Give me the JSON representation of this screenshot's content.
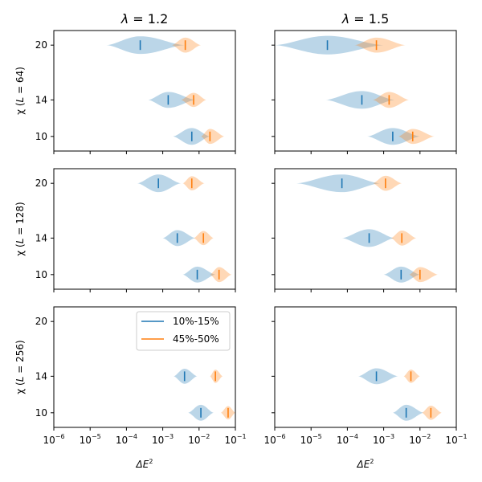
{
  "chart_data": {
    "type": "violin",
    "xscale": "log",
    "xlim_exp": [
      -6,
      -1
    ],
    "xticks": [
      {
        "exp": -6,
        "base": "10",
        "sup": "−6"
      },
      {
        "exp": -5,
        "base": "10",
        "sup": "−5"
      },
      {
        "exp": -4,
        "base": "10",
        "sup": "−4"
      },
      {
        "exp": -3,
        "base": "10",
        "sup": "−3"
      },
      {
        "exp": -2,
        "base": "10",
        "sup": "−2"
      },
      {
        "exp": -1,
        "base": "10",
        "sup": "−1"
      }
    ],
    "ylim": [
      8.4,
      21.6
    ],
    "yticks": [
      10,
      14,
      20
    ],
    "xlabel": {
      "base": "ΔE",
      "sup": "2"
    },
    "column_titles": [
      {
        "lambda_symbol": "λ",
        "rest": " = 1.2"
      },
      {
        "lambda_symbol": "λ",
        "rest": " = 1.5"
      }
    ],
    "row_labels": [
      {
        "prefix": "χ (",
        "L": "L",
        "rest": " = 64)"
      },
      {
        "prefix": "χ (",
        "L": "L",
        "rest": " = 128)"
      },
      {
        "prefix": "χ (",
        "L": "L",
        "rest": " = 256)"
      }
    ],
    "legend": [
      {
        "label": "10%-15%",
        "color": "#1f77b4"
      },
      {
        "label": "45%-50%",
        "color": "#ff7f0e"
      }
    ],
    "series_colors": [
      "#1f77b4",
      "#ff7f0e"
    ],
    "panels": [
      {
        "row": 0,
        "col": 0,
        "violins": [
          {
            "chi": 20,
            "series": 0,
            "median_exp": -3.62,
            "min_exp": -4.55,
            "max_exp": -2.4,
            "width": 1.0
          },
          {
            "chi": 20,
            "series": 1,
            "median_exp": -2.38,
            "min_exp": -2.75,
            "max_exp": -1.95,
            "width": 0.85
          },
          {
            "chi": 14,
            "series": 0,
            "median_exp": -2.85,
            "min_exp": -3.4,
            "max_exp": -2.1,
            "width": 0.9
          },
          {
            "chi": 14,
            "series": 1,
            "median_exp": -2.15,
            "min_exp": -2.5,
            "max_exp": -1.8,
            "width": 0.8
          },
          {
            "chi": 10,
            "series": 0,
            "median_exp": -2.2,
            "min_exp": -2.72,
            "max_exp": -1.7,
            "width": 0.95
          },
          {
            "chi": 10,
            "series": 1,
            "median_exp": -1.7,
            "min_exp": -1.95,
            "max_exp": -1.3,
            "width": 0.85
          }
        ]
      },
      {
        "row": 0,
        "col": 1,
        "violins": [
          {
            "chi": 20,
            "series": 0,
            "median_exp": -4.55,
            "min_exp": -6.0,
            "max_exp": -3.0,
            "width": 1.05
          },
          {
            "chi": 20,
            "series": 1,
            "median_exp": -3.2,
            "min_exp": -3.8,
            "max_exp": -2.4,
            "width": 0.85
          },
          {
            "chi": 14,
            "series": 0,
            "median_exp": -3.6,
            "min_exp": -4.6,
            "max_exp": -2.7,
            "width": 1.0
          },
          {
            "chi": 14,
            "series": 1,
            "median_exp": -2.85,
            "min_exp": -3.3,
            "max_exp": -2.3,
            "width": 0.9
          },
          {
            "chi": 10,
            "series": 0,
            "median_exp": -2.75,
            "min_exp": -3.45,
            "max_exp": -2.0,
            "width": 0.95
          },
          {
            "chi": 10,
            "series": 1,
            "median_exp": -2.2,
            "min_exp": -2.6,
            "max_exp": -1.6,
            "width": 0.85
          }
        ]
      },
      {
        "row": 1,
        "col": 0,
        "violins": [
          {
            "chi": 20,
            "series": 0,
            "median_exp": -3.12,
            "min_exp": -3.7,
            "max_exp": -2.5,
            "width": 1.0
          },
          {
            "chi": 20,
            "series": 1,
            "median_exp": -2.2,
            "min_exp": -2.45,
            "max_exp": -1.85,
            "width": 0.8
          },
          {
            "chi": 14,
            "series": 0,
            "median_exp": -2.6,
            "min_exp": -3.0,
            "max_exp": -2.1,
            "width": 0.9
          },
          {
            "chi": 14,
            "series": 1,
            "median_exp": -1.88,
            "min_exp": -2.15,
            "max_exp": -1.6,
            "width": 0.8
          },
          {
            "chi": 10,
            "series": 0,
            "median_exp": -2.05,
            "min_exp": -2.45,
            "max_exp": -1.55,
            "width": 0.9
          },
          {
            "chi": 10,
            "series": 1,
            "median_exp": -1.45,
            "min_exp": -1.7,
            "max_exp": -1.1,
            "width": 0.85
          }
        ]
      },
      {
        "row": 1,
        "col": 1,
        "violins": [
          {
            "chi": 20,
            "series": 0,
            "median_exp": -4.15,
            "min_exp": -5.4,
            "max_exp": -3.1,
            "width": 1.0
          },
          {
            "chi": 20,
            "series": 1,
            "median_exp": -2.95,
            "min_exp": -3.3,
            "max_exp": -2.5,
            "width": 0.85
          },
          {
            "chi": 14,
            "series": 0,
            "median_exp": -3.4,
            "min_exp": -4.15,
            "max_exp": -2.7,
            "width": 1.0
          },
          {
            "chi": 14,
            "series": 1,
            "median_exp": -2.5,
            "min_exp": -2.8,
            "max_exp": -2.1,
            "width": 0.85
          },
          {
            "chi": 10,
            "series": 0,
            "median_exp": -2.52,
            "min_exp": -3.0,
            "max_exp": -2.0,
            "width": 0.9
          },
          {
            "chi": 10,
            "series": 1,
            "median_exp": -2.0,
            "min_exp": -2.3,
            "max_exp": -1.5,
            "width": 0.85
          }
        ]
      },
      {
        "row": 2,
        "col": 0,
        "violins": [
          {
            "chi": 14,
            "series": 0,
            "median_exp": -2.4,
            "min_exp": -2.7,
            "max_exp": -2.05,
            "width": 0.85
          },
          {
            "chi": 14,
            "series": 1,
            "median_exp": -1.55,
            "min_exp": -1.7,
            "max_exp": -1.35,
            "width": 0.75
          },
          {
            "chi": 10,
            "series": 0,
            "median_exp": -1.95,
            "min_exp": -2.3,
            "max_exp": -1.6,
            "width": 0.9
          },
          {
            "chi": 10,
            "series": 1,
            "median_exp": -1.2,
            "min_exp": -1.4,
            "max_exp": -1.0,
            "width": 0.75
          }
        ]
      },
      {
        "row": 2,
        "col": 1,
        "violins": [
          {
            "chi": 14,
            "series": 0,
            "median_exp": -3.2,
            "min_exp": -3.7,
            "max_exp": -2.6,
            "width": 0.9
          },
          {
            "chi": 14,
            "series": 1,
            "median_exp": -2.25,
            "min_exp": -2.45,
            "max_exp": -2.0,
            "width": 0.75
          },
          {
            "chi": 10,
            "series": 0,
            "median_exp": -2.38,
            "min_exp": -2.75,
            "max_exp": -1.9,
            "width": 0.9
          },
          {
            "chi": 10,
            "series": 1,
            "median_exp": -1.7,
            "min_exp": -1.95,
            "max_exp": -1.4,
            "width": 0.8
          }
        ]
      }
    ]
  }
}
